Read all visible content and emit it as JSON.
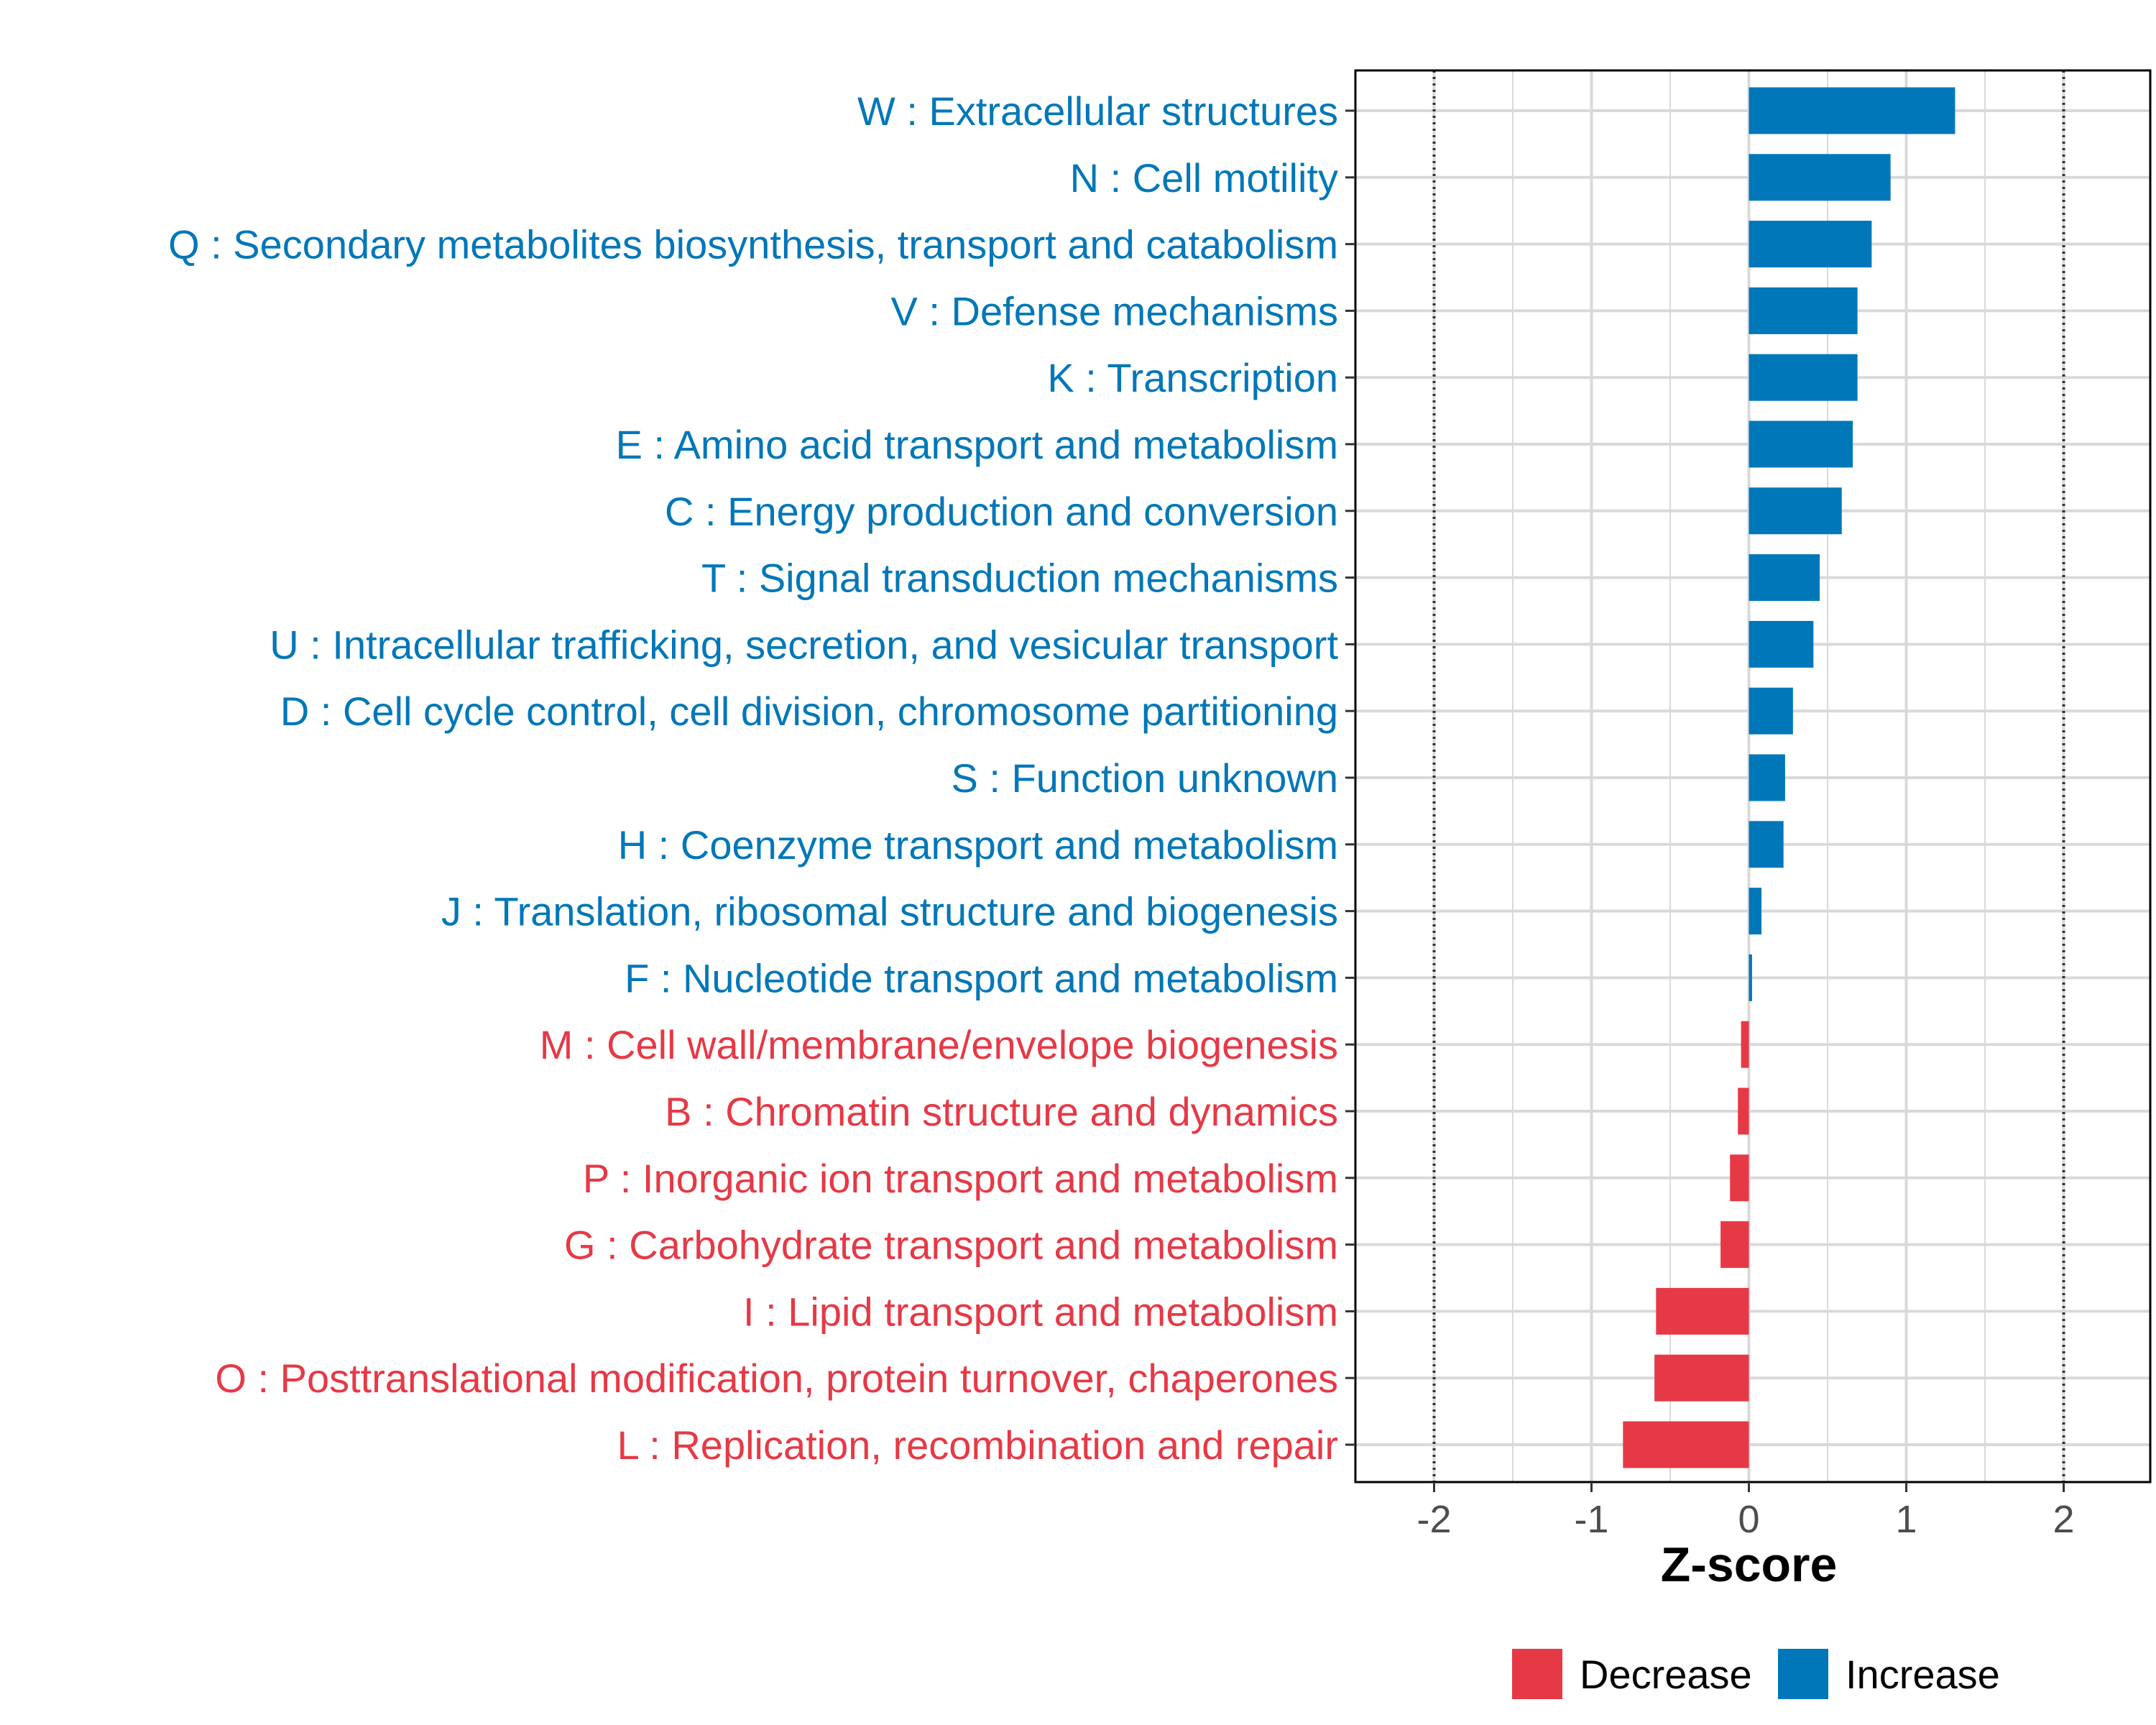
{
  "colors": {
    "increase": "#0077B8",
    "decrease": "#E63946",
    "grid": "#D9D9D9"
  },
  "chart_data": {
    "type": "bar",
    "orientation": "horizontal",
    "xlabel": "Z-score",
    "xlim": [
      -2.5,
      2.55
    ],
    "xticks": [
      -2,
      -1,
      0,
      1,
      2
    ],
    "xtick_labels": [
      "-2",
      "-1",
      "0",
      "1",
      "2"
    ],
    "reference_lines": [
      -2,
      2
    ],
    "categories": [
      "W : Extracellular structures",
      "N : Cell motility",
      "Q : Secondary metabolites biosynthesis, transport and catabolism",
      "V : Defense mechanisms",
      "K : Transcription",
      "E : Amino acid transport and metabolism",
      "C : Energy production and conversion",
      "T : Signal transduction mechanisms",
      "U : Intracellular trafficking, secretion, and vesicular transport",
      "D : Cell cycle control, cell division, chromosome partitioning",
      "S : Function unknown",
      "H : Coenzyme transport and metabolism",
      "J : Translation, ribosomal structure and biogenesis",
      "F : Nucleotide transport and metabolism",
      "M : Cell wall/membrane/envelope biogenesis",
      "B : Chromatin structure and dynamics",
      "P : Inorganic ion transport and metabolism",
      "G : Carbohydrate transport and metabolism",
      "I : Lipid transport and metabolism",
      "O : Posttranslational modification, protein turnover, chaperones",
      "L : Replication, recombination and repair"
    ],
    "values": [
      1.31,
      0.9,
      0.78,
      0.69,
      0.69,
      0.66,
      0.59,
      0.45,
      0.41,
      0.28,
      0.23,
      0.22,
      0.08,
      0.02,
      -0.05,
      -0.07,
      -0.12,
      -0.18,
      -0.59,
      -0.6,
      -0.8
    ],
    "groups": [
      "Increase",
      "Increase",
      "Increase",
      "Increase",
      "Increase",
      "Increase",
      "Increase",
      "Increase",
      "Increase",
      "Increase",
      "Increase",
      "Increase",
      "Increase",
      "Increase",
      "Decrease",
      "Decrease",
      "Decrease",
      "Decrease",
      "Decrease",
      "Decrease",
      "Decrease"
    ],
    "legend": {
      "position": "bottom",
      "entries": [
        "Decrease",
        "Increase"
      ]
    }
  }
}
